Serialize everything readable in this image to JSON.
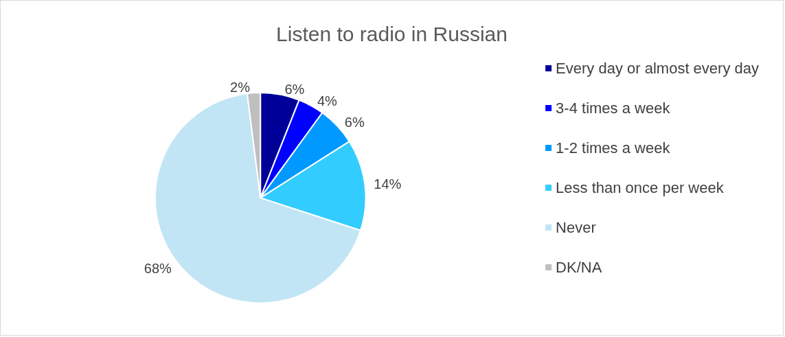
{
  "chart_data": {
    "type": "pie",
    "title": "Listen to radio in Russian",
    "categories": [
      "Every day or almost every day",
      "3-4 times a week",
      "1-2 times a week",
      "Less than once per week",
      "Never",
      "DK/NA"
    ],
    "values": [
      6,
      4,
      6,
      14,
      68,
      2
    ],
    "value_labels": [
      "6%",
      "4%",
      "6%",
      "14%",
      "68%",
      "2%"
    ],
    "colors": [
      "#000099",
      "#0000ff",
      "#0099ff",
      "#33ccff",
      "#c2e5f5",
      "#bfbfbf"
    ],
    "legend": "right"
  }
}
